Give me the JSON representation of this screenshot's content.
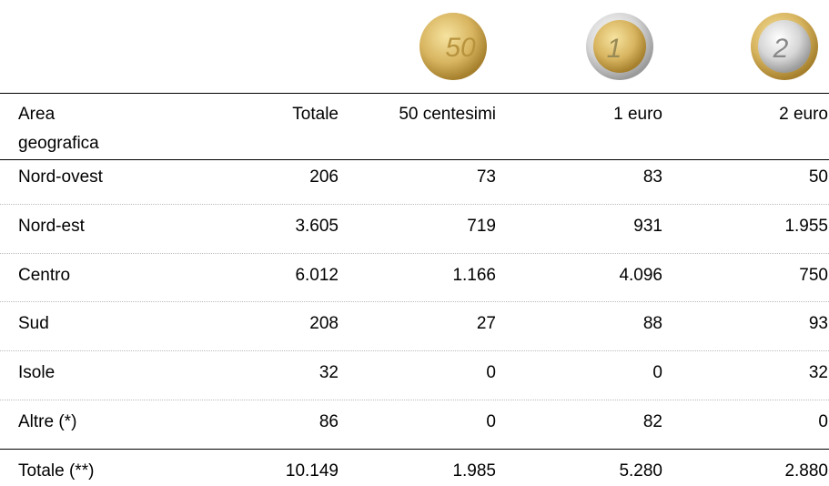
{
  "table": {
    "headers": [
      [
        "Area",
        "geografica"
      ],
      "Totale",
      "50 centesimi",
      "1 euro",
      "2 euro"
    ],
    "rows": [
      [
        "Nord-ovest",
        "206",
        "73",
        "83",
        "50"
      ],
      [
        "Nord-est",
        "3.605",
        "719",
        "931",
        "1.955"
      ],
      [
        "Centro",
        "6.012",
        "1.166",
        "4.096",
        "750"
      ],
      [
        "Sud",
        "208",
        "27",
        "88",
        "93"
      ],
      [
        "Isole",
        "32",
        "0",
        "0",
        "32"
      ],
      [
        "Altre (*)",
        "86",
        "0",
        "82",
        "0"
      ],
      [
        "Totale (**)",
        "10.149",
        "1.985",
        "5.280",
        "2.880"
      ]
    ]
  }
}
